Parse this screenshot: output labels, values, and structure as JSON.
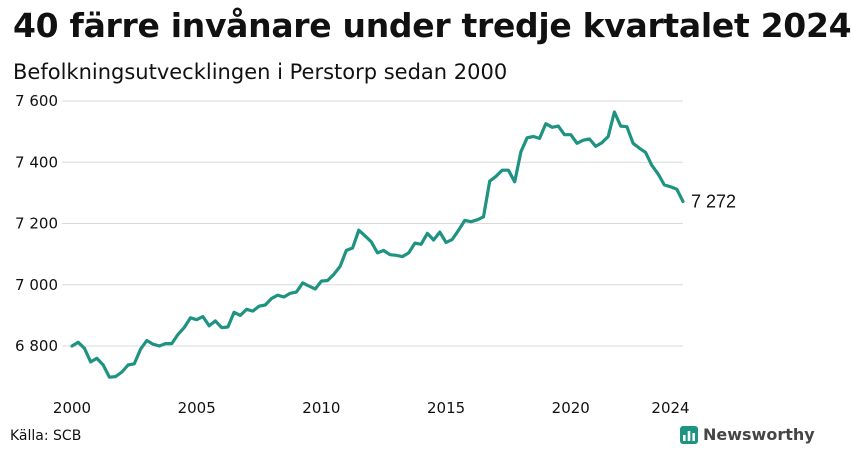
{
  "chart_data": {
    "type": "line",
    "title": "40 färre invånare under tredje kvartalet 2024",
    "subtitle": "Befolkningsutvecklingen i Perstorp sedan 2000",
    "xlabel": "",
    "ylabel": "",
    "x_tick_labels": [
      "2000",
      "2005",
      "2010",
      "2015",
      "2020",
      "2024"
    ],
    "x_ticks": [
      2000,
      2005,
      2010,
      2015,
      2020,
      2024
    ],
    "y_tick_labels": [
      "6 800",
      "7 000",
      "7 200",
      "7 400",
      "7 600"
    ],
    "y_ticks": [
      6800,
      7000,
      7200,
      7400,
      7600
    ],
    "xlim": [
      2000,
      2024.5
    ],
    "ylim": [
      6700,
      7620
    ],
    "grid": true,
    "last_value_label": "7 272",
    "series": [
      {
        "color": "#1f9382",
        "x": [
          2000,
          2000.25,
          2000.5,
          2000.75,
          2001,
          2001.25,
          2001.5,
          2001.75,
          2002,
          2002.25,
          2002.5,
          2002.75,
          2003,
          2003.25,
          2003.5,
          2003.75,
          2004,
          2004.25,
          2004.5,
          2004.75,
          2005,
          2005.25,
          2005.5,
          2005.75,
          2006,
          2006.25,
          2006.5,
          2006.75,
          2007,
          2007.25,
          2007.5,
          2007.75,
          2008,
          2008.25,
          2008.5,
          2008.75,
          2009,
          2009.25,
          2009.5,
          2009.75,
          2010,
          2010.25,
          2010.5,
          2010.75,
          2011,
          2011.25,
          2011.5,
          2011.75,
          2012,
          2012.25,
          2012.5,
          2012.75,
          2013,
          2013.25,
          2013.5,
          2013.75,
          2014,
          2014.25,
          2014.5,
          2014.75,
          2015,
          2015.25,
          2015.5,
          2015.75,
          2016,
          2016.25,
          2016.5,
          2016.75,
          2017,
          2017.25,
          2017.5,
          2017.75,
          2018,
          2018.25,
          2018.5,
          2018.75,
          2019,
          2019.25,
          2019.5,
          2019.75,
          2020,
          2020.25,
          2020.5,
          2020.75,
          2021,
          2021.25,
          2021.5,
          2021.75,
          2022,
          2022.25,
          2022.5,
          2022.75,
          2023,
          2023.25,
          2023.5,
          2023.75,
          2024,
          2024.25,
          2024.5
        ],
        "values": [
          6800,
          6812,
          6792,
          6748,
          6760,
          6738,
          6698,
          6700,
          6715,
          6738,
          6742,
          6790,
          6818,
          6806,
          6800,
          6808,
          6808,
          6838,
          6860,
          6892,
          6886,
          6896,
          6866,
          6882,
          6860,
          6862,
          6910,
          6900,
          6920,
          6914,
          6930,
          6934,
          6955,
          6966,
          6960,
          6972,
          6976,
          7006,
          6996,
          6986,
          7012,
          7014,
          7034,
          7060,
          7112,
          7120,
          7178,
          7160,
          7140,
          7104,
          7112,
          7098,
          7096,
          7092,
          7104,
          7136,
          7132,
          7168,
          7146,
          7172,
          7138,
          7148,
          7178,
          7210,
          7206,
          7212,
          7222,
          7338,
          7354,
          7374,
          7374,
          7336,
          7434,
          7480,
          7484,
          7478,
          7526,
          7514,
          7518,
          7490,
          7490,
          7462,
          7472,
          7476,
          7452,
          7464,
          7484,
          7564,
          7518,
          7516,
          7462,
          7446,
          7432,
          7390,
          7362,
          7326,
          7320,
          7312,
          7272
        ]
      }
    ]
  },
  "source": "Källa: SCB",
  "brand": {
    "name": "Newsworthy",
    "icon": "bar-chart-icon",
    "color": "#1f9382"
  }
}
